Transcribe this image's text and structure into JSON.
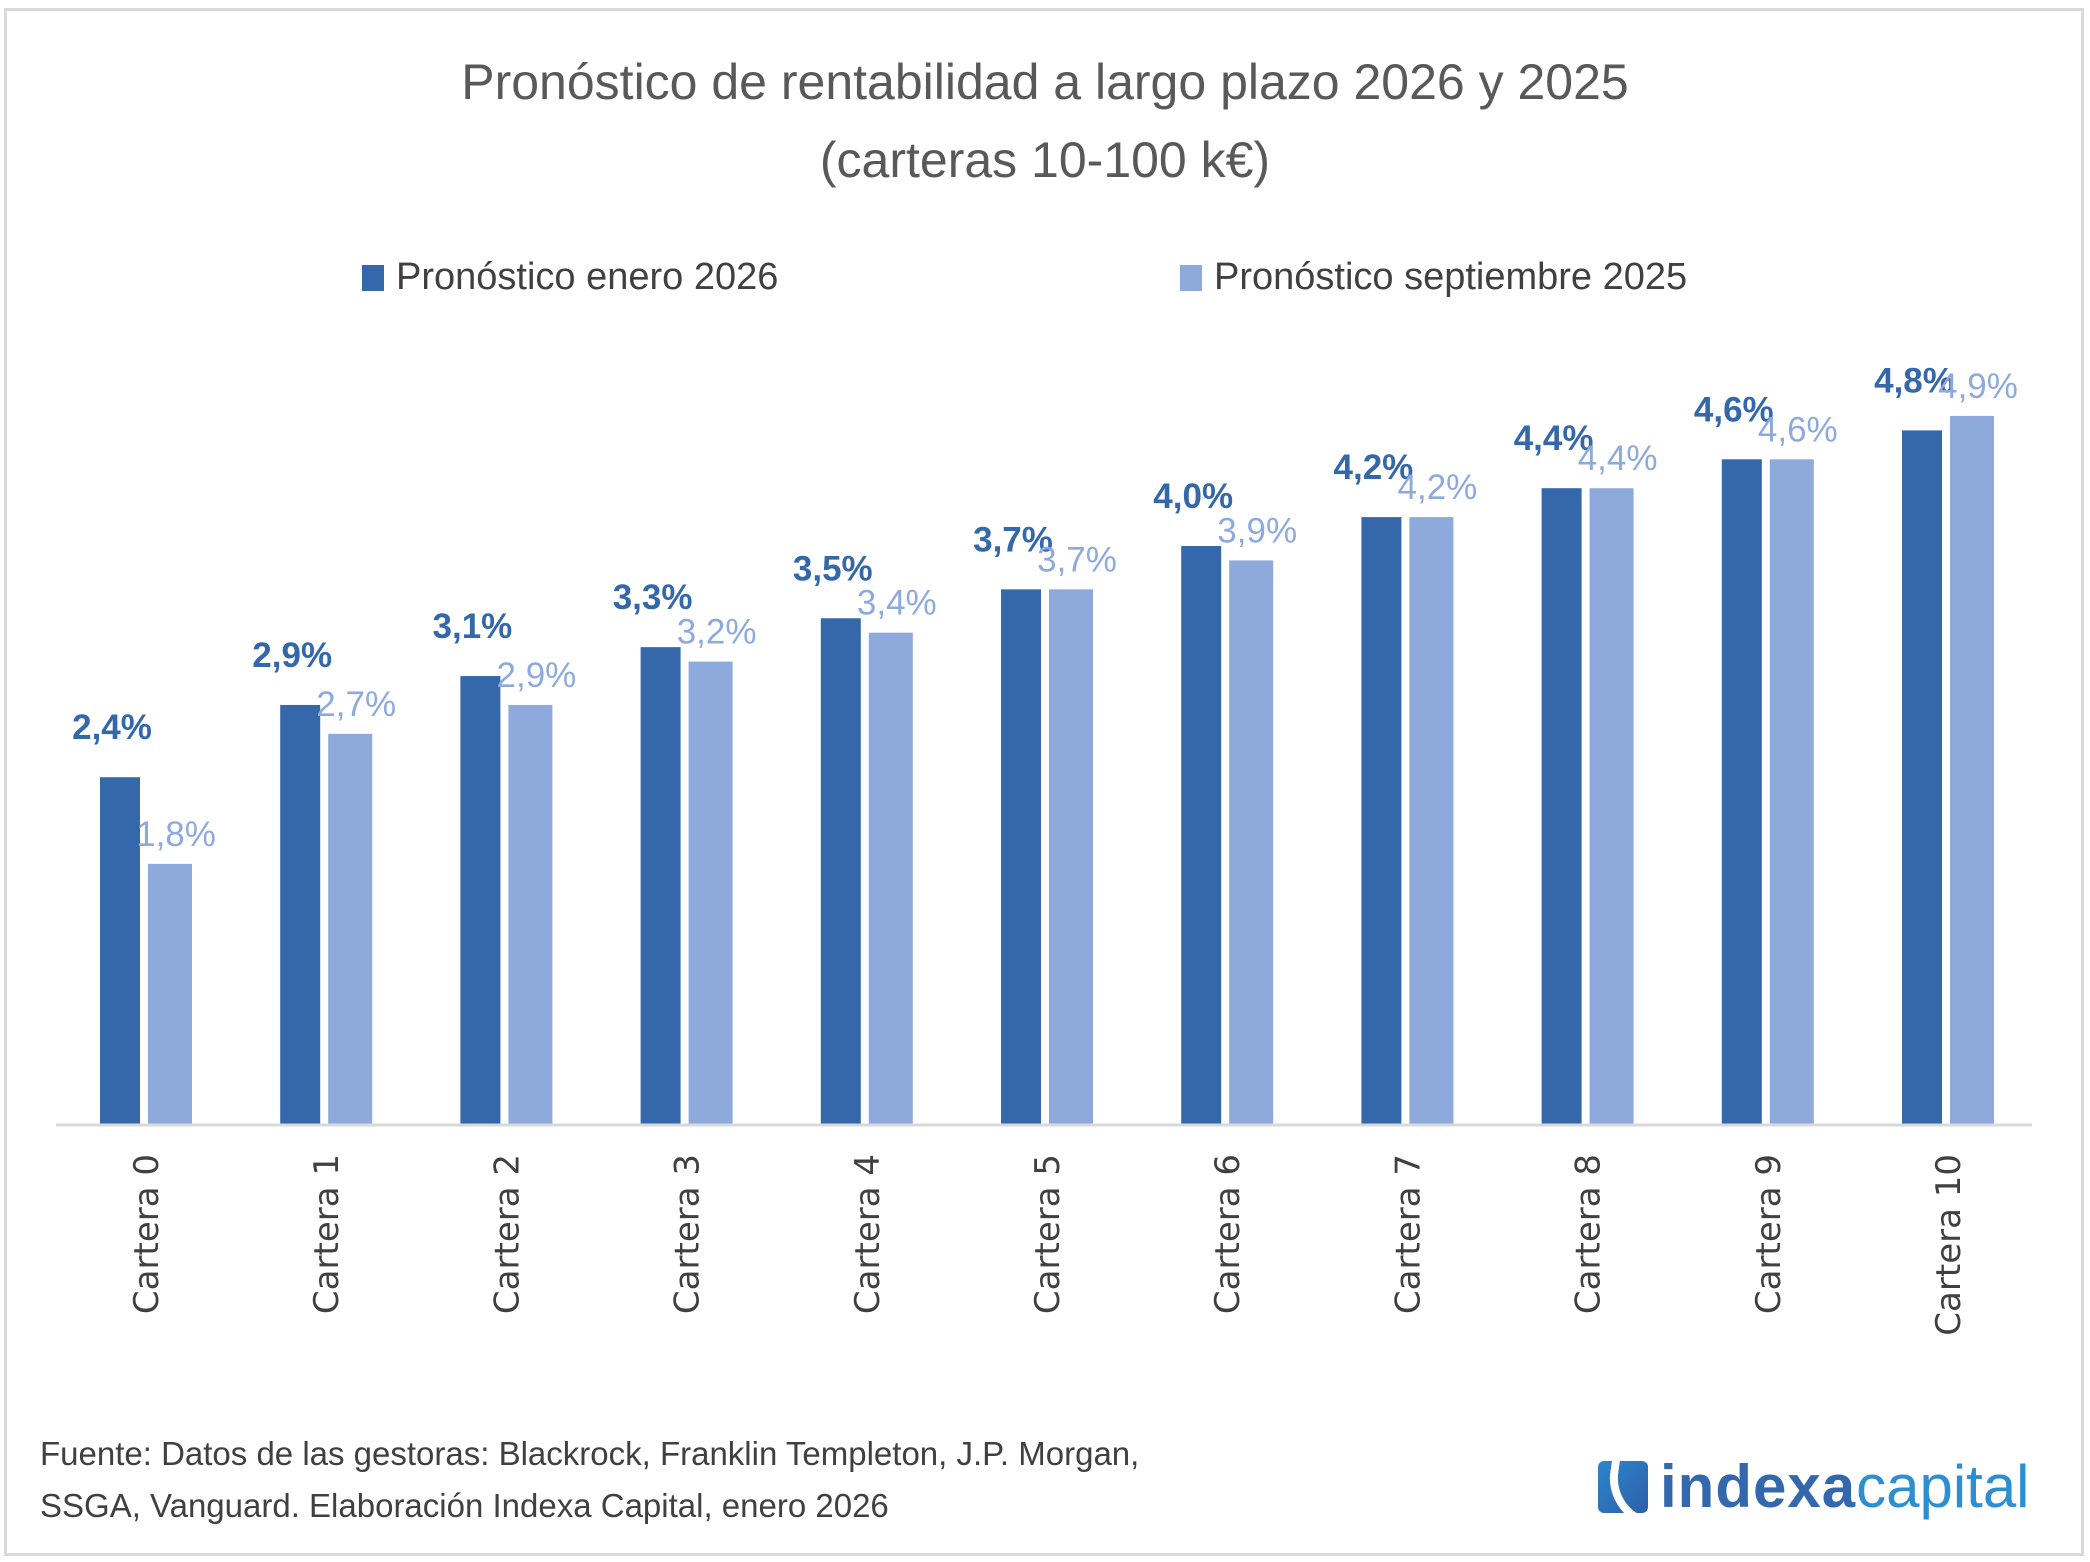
{
  "chart_data": {
    "type": "bar",
    "title": "Pronóstico de rentabilidad a largo plazo 2026 y 2025",
    "subtitle": "(carteras 10-100 k€)",
    "xlabel": "",
    "ylabel": "",
    "ylim": [
      0,
      5
    ],
    "grid": false,
    "legend_position": "top",
    "categories": [
      "Cartera 0",
      "Cartera 1",
      "Cartera 2",
      "Cartera 3",
      "Cartera 4",
      "Cartera 5",
      "Cartera 6",
      "Cartera 7",
      "Cartera 8",
      "Cartera 9",
      "Cartera 10"
    ],
    "series": [
      {
        "name": "Pronóstico enero 2026",
        "color": "#3468ab",
        "values": [
          2.4,
          2.9,
          3.1,
          3.3,
          3.5,
          3.7,
          4.0,
          4.2,
          4.4,
          4.6,
          4.8
        ],
        "labels": [
          "2,4%",
          "2,9%",
          "3,1%",
          "3,3%",
          "3,5%",
          "3,7%",
          "4,0%",
          "4,2%",
          "4,4%",
          "4,6%",
          "4,8%"
        ]
      },
      {
        "name": "Pronóstico septiembre 2025",
        "color": "#8eaadc",
        "values": [
          1.8,
          2.7,
          2.9,
          3.2,
          3.4,
          3.7,
          3.9,
          4.2,
          4.4,
          4.6,
          4.9
        ],
        "labels": [
          "1,8%",
          "2,7%",
          "2,9%",
          "3,2%",
          "3,4%",
          "3,7%",
          "3,9%",
          "4,2%",
          "4,4%",
          "4,6%",
          "4,9%"
        ]
      }
    ]
  },
  "source": {
    "line1": "Fuente: Datos de las gestoras: Blackrock, Franklin Templeton, J.P. Morgan,",
    "line2": "SSGA, Vanguard. Elaboración Indexa Capital, enero 2026"
  },
  "logo": {
    "part1": "indexa",
    "part2": "capital",
    "icon": "indexa-logo-icon"
  }
}
